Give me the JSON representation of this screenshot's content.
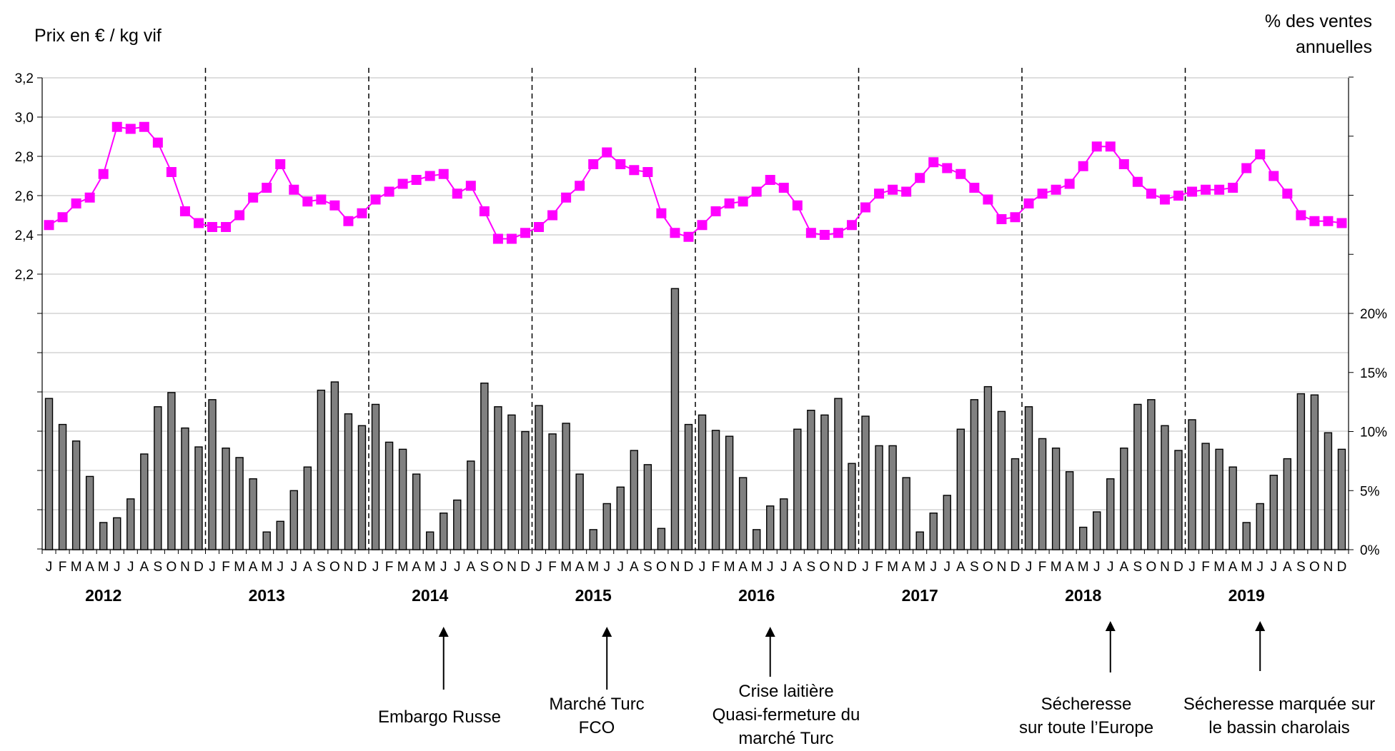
{
  "chart_data": {
    "type": "bar+line",
    "left_axis_label": "Prix en € / kg vif",
    "right_axis_label": "% des ventes annuelles",
    "left_ticks": [
      "3,2",
      "3,0",
      "2,8",
      "2,6",
      "2,4",
      "2,2"
    ],
    "left_tick_values": [
      3.2,
      3.0,
      2.8,
      2.6,
      2.4,
      2.2
    ],
    "right_ticks": [
      "20%",
      "15%",
      "10%",
      "5%",
      "0%"
    ],
    "right_tick_values": [
      20,
      15,
      10,
      5,
      0
    ],
    "month_labels": [
      "J",
      "F",
      "M",
      "A",
      "M",
      "J",
      "J",
      "A",
      "S",
      "O",
      "N",
      "D"
    ],
    "years": [
      "2012",
      "2013",
      "2014",
      "2015",
      "2016",
      "2017",
      "2018",
      "2019"
    ],
    "series": [
      {
        "name": "Prix",
        "color": "#ff00ff",
        "values": [
          2.45,
          2.49,
          2.56,
          2.59,
          2.71,
          2.95,
          2.94,
          2.95,
          2.87,
          2.72,
          2.52,
          2.46,
          2.44,
          2.44,
          2.5,
          2.59,
          2.64,
          2.76,
          2.63,
          2.57,
          2.58,
          2.55,
          2.47,
          2.51,
          2.58,
          2.62,
          2.66,
          2.68,
          2.7,
          2.71,
          2.61,
          2.65,
          2.52,
          2.38,
          2.38,
          2.41,
          2.44,
          2.5,
          2.59,
          2.65,
          2.76,
          2.82,
          2.76,
          2.73,
          2.72,
          2.51,
          2.41,
          2.39,
          2.45,
          2.52,
          2.56,
          2.57,
          2.62,
          2.68,
          2.64,
          2.55,
          2.41,
          2.4,
          2.41,
          2.45,
          2.54,
          2.61,
          2.63,
          2.62,
          2.69,
          2.77,
          2.74,
          2.71,
          2.64,
          2.58,
          2.48,
          2.49,
          2.56,
          2.61,
          2.63,
          2.66,
          2.75,
          2.85,
          2.85,
          2.76,
          2.67,
          2.61,
          2.58,
          2.6,
          2.62,
          2.63,
          2.63,
          2.64,
          2.74,
          2.81,
          2.7,
          2.61,
          2.5,
          2.47,
          2.47,
          2.46
        ]
      },
      {
        "name": "% des ventes annuelles",
        "color": "#808080",
        "values": [
          12.8,
          10.6,
          9.2,
          6.2,
          2.3,
          2.7,
          4.3,
          8.1,
          12.1,
          13.3,
          10.3,
          8.7,
          12.7,
          8.6,
          7.8,
          6.0,
          1.5,
          2.4,
          5.0,
          7.0,
          13.5,
          14.2,
          11.5,
          10.5,
          12.3,
          9.1,
          8.5,
          6.4,
          1.5,
          3.1,
          4.2,
          7.5,
          14.1,
          12.1,
          11.4,
          10.0,
          12.2,
          9.8,
          10.7,
          6.4,
          1.7,
          3.9,
          5.3,
          8.4,
          7.2,
          1.8,
          22.1,
          10.6,
          11.4,
          10.1,
          9.6,
          6.1,
          1.7,
          3.7,
          4.3,
          10.2,
          11.8,
          11.4,
          12.8,
          7.3,
          11.3,
          8.8,
          8.8,
          6.1,
          1.5,
          3.1,
          4.6,
          10.2,
          12.7,
          13.8,
          11.7,
          7.7,
          12.1,
          9.4,
          8.6,
          6.6,
          1.9,
          3.2,
          6.0,
          8.6,
          12.3,
          12.7,
          10.5,
          8.4,
          11.0,
          9.0,
          8.5,
          7.0,
          2.3,
          3.9,
          6.3,
          7.7,
          13.2,
          13.1,
          9.9,
          8.5
        ]
      }
    ],
    "annotations": [
      {
        "text": "Embargo Russe",
        "month_index": 29
      },
      {
        "text": "Marché Turc\nFCO",
        "month_index": 41
      },
      {
        "text": "Crise laitière\nQuasi-fermeture du\nmarché Turc",
        "month_index": 53
      },
      {
        "text": "Sécheresse\nsur toute l’Europe",
        "month_index": 78
      },
      {
        "text": "Sécheresse marquée sur\nle bassin charolais",
        "month_index": 89
      }
    ],
    "left_ylim": [
      2.2,
      3.2
    ],
    "right_ylim": [
      0,
      20
    ],
    "grid": "horizontal"
  }
}
